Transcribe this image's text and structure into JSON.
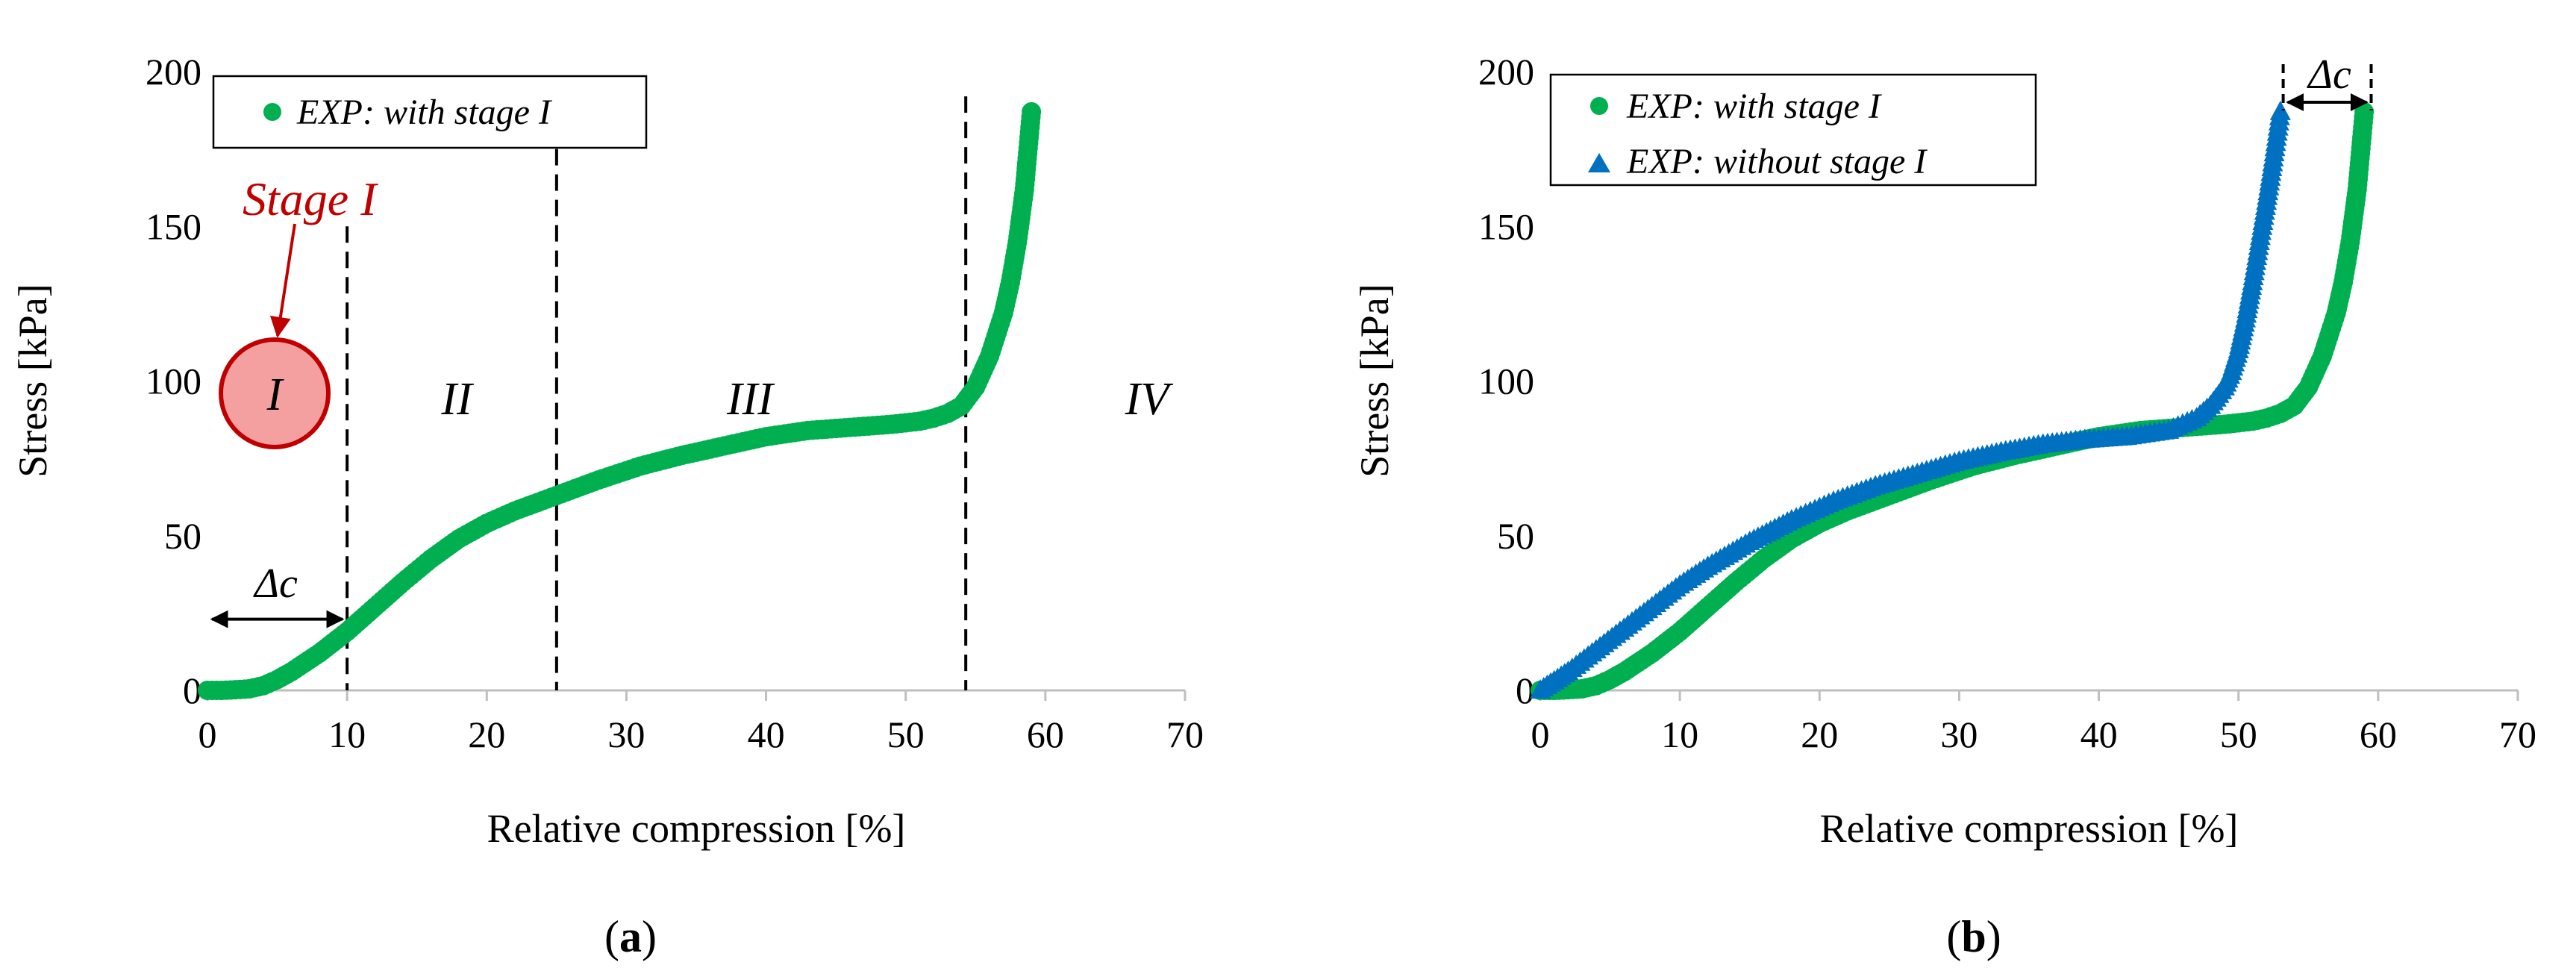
{
  "figure": {
    "panel_a": {
      "caption_open": "(",
      "caption_letter": "a",
      "caption_close": ")"
    },
    "panel_b": {
      "caption_open": "(",
      "caption_letter": "b",
      "caption_close": ")"
    }
  },
  "annotations": {
    "stage_label": "Stage I",
    "circle_label": "I",
    "region_labels": [
      "II",
      "III",
      "IV"
    ],
    "delta_label": "Δc",
    "dashed_lines_x": [
      10,
      25,
      54.3
    ],
    "delta_range_a": [
      0,
      10
    ],
    "delta_range_b": [
      53.2,
      59.5
    ]
  },
  "colors": {
    "green": "#00b050",
    "blue": "#0070c0",
    "red": "#c00000",
    "circle_fill": "#f4a0a0"
  },
  "chart_data": [
    {
      "type": "scatter",
      "panel": "a",
      "title": "",
      "xlabel": "Relative compression [%]",
      "ylabel": "Stress [kPa]",
      "xlim": [
        0,
        70
      ],
      "ylim": [
        0,
        200
      ],
      "xticks": [
        0,
        10,
        20,
        30,
        40,
        50,
        60,
        70
      ],
      "yticks": [
        0,
        50,
        100,
        150,
        200
      ],
      "legend_position": "top-left",
      "series": [
        {
          "name": "EXP: with stage I",
          "marker": "circle",
          "color": "#00b050",
          "x": [
            0,
            1,
            2,
            3,
            4,
            5,
            6,
            7,
            8,
            9,
            10,
            12,
            14,
            16,
            18,
            20,
            22,
            25,
            28,
            31,
            34,
            37,
            40,
            43,
            46,
            49,
            51,
            52,
            53,
            54,
            55,
            56,
            57,
            57.5,
            58,
            58.5,
            59
          ],
          "y": [
            0,
            0,
            0.2,
            0.5,
            1.5,
            3.5,
            6,
            9,
            12,
            15.5,
            19,
            27,
            35,
            42.5,
            49,
            54,
            58,
            63,
            68,
            72.5,
            76,
            79,
            82,
            84,
            85,
            86,
            87,
            88,
            89.5,
            92,
            98,
            108,
            122,
            132,
            145,
            162,
            187
          ]
        }
      ]
    },
    {
      "type": "scatter",
      "panel": "b",
      "title": "",
      "xlabel": "Relative compression [%]",
      "ylabel": "Stress [kPa]",
      "xlim": [
        0,
        70
      ],
      "ylim": [
        0,
        200
      ],
      "xticks": [
        0,
        10,
        20,
        30,
        40,
        50,
        60,
        70
      ],
      "yticks": [
        0,
        50,
        100,
        150,
        200
      ],
      "legend_position": "top-left",
      "series": [
        {
          "name": "EXP: with stage I",
          "marker": "circle",
          "color": "#00b050",
          "x": [
            0,
            1,
            2,
            3,
            4,
            5,
            6,
            7,
            8,
            9,
            10,
            12,
            14,
            16,
            18,
            20,
            22,
            25,
            28,
            31,
            34,
            37,
            40,
            43,
            46,
            49,
            51,
            52,
            53,
            54,
            55,
            56,
            57,
            57.5,
            58,
            58.5,
            59
          ],
          "y": [
            0,
            0,
            0.2,
            0.5,
            1.5,
            3.5,
            6,
            9,
            12,
            15.5,
            19,
            27,
            35,
            42.5,
            49,
            54,
            58,
            63,
            68,
            72.5,
            76,
            79,
            82,
            84,
            85,
            86,
            87,
            88,
            89.5,
            92,
            98,
            108,
            122,
            132,
            145,
            162,
            187
          ]
        },
        {
          "name": "EXP: without stage I",
          "marker": "triangle",
          "color": "#0070c0",
          "x": [
            0,
            1,
            2,
            4,
            6,
            8,
            10,
            12,
            15,
            18,
            21,
            24,
            27,
            30,
            33,
            36,
            39,
            42,
            45,
            46,
            47,
            48,
            49,
            49.5,
            50,
            50.5,
            51,
            51.5,
            52,
            52.5,
            53
          ],
          "y": [
            0,
            3,
            6,
            13,
            20,
            27,
            34,
            40,
            48,
            55,
            61,
            66,
            70,
            74,
            77,
            79.5,
            81,
            82,
            84,
            86,
            88,
            92,
            98,
            103,
            110,
            120,
            132,
            145,
            158,
            172,
            187
          ]
        }
      ]
    }
  ]
}
